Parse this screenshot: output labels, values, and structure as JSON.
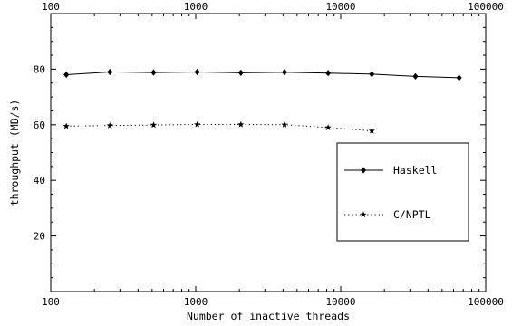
{
  "chart_data": {
    "type": "line",
    "title": "",
    "xlabel": "Number of inactive threads",
    "ylabel": "throughput (MB/s)",
    "x_scale": "log",
    "xlim": [
      100,
      100000
    ],
    "ylim": [
      0,
      100
    ],
    "x_ticks": [
      100,
      1000,
      10000,
      100000
    ],
    "x_tick_labels": [
      "100",
      "1000",
      "10000",
      "100000"
    ],
    "y_ticks": [
      20,
      40,
      60,
      80
    ],
    "y_tick_labels": [
      "20",
      "40",
      "60",
      "80"
    ],
    "grid": false,
    "legend_position": "right",
    "series": [
      {
        "name": "Haskell",
        "marker": "diamond",
        "line_style": "solid",
        "color": "#000000",
        "x": [
          128,
          256,
          512,
          1024,
          2048,
          4096,
          8192,
          16384,
          32768,
          65536
        ],
        "y": [
          78.0,
          79.0,
          78.8,
          79.0,
          78.7,
          78.9,
          78.6,
          78.2,
          77.4,
          76.9
        ]
      },
      {
        "name": "C/NPTL",
        "marker": "star",
        "line_style": "dotted",
        "color": "#000000",
        "x": [
          128,
          256,
          512,
          1024,
          2048,
          4096,
          8192,
          16384
        ],
        "y": [
          59.5,
          59.7,
          59.9,
          60.1,
          60.1,
          60.0,
          59.0,
          57.8
        ]
      }
    ]
  }
}
